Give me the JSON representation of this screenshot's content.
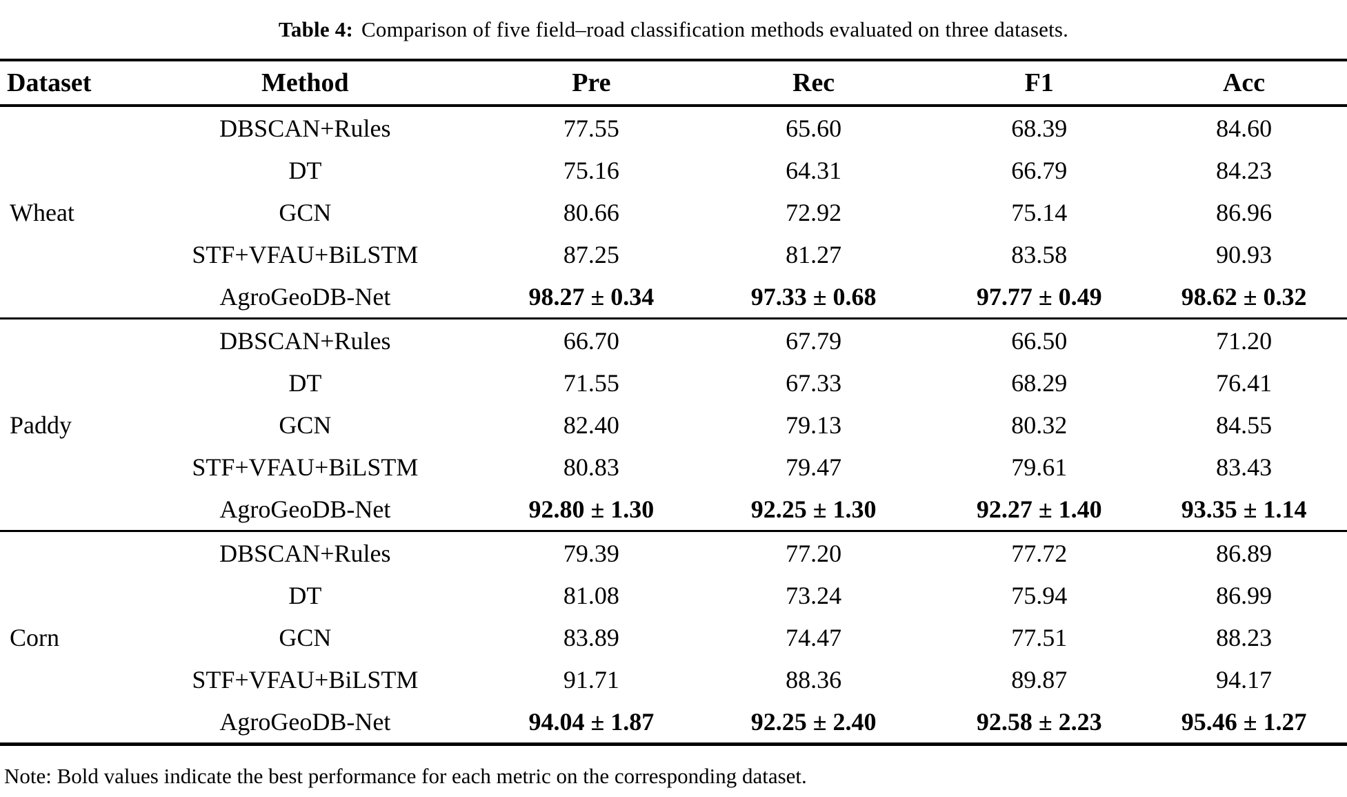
{
  "title": {
    "label": "Table 4:",
    "text": "Comparison of five field–road classification methods evaluated on three datasets."
  },
  "columns": [
    "Dataset",
    "Method",
    "Pre",
    "Rec",
    "F1",
    "Acc"
  ],
  "note": "Note: Bold values indicate the best performance for each metric on the corresponding dataset.",
  "colors": {
    "text": "#000000",
    "background": "#ffffff",
    "rule": "#000000"
  },
  "chart_data": {
    "type": "table",
    "title": "Table 4: Comparison of five field–road classification methods evaluated on three datasets.",
    "columns": [
      "Dataset",
      "Method",
      "Pre",
      "Rec",
      "F1",
      "Acc"
    ],
    "sections": [
      {
        "dataset": "Wheat",
        "rows": [
          {
            "method": "DBSCAN+Rules",
            "pre": "77.55",
            "rec": "65.60",
            "f1": "68.39",
            "acc": "84.60",
            "bold": false
          },
          {
            "method": "DT",
            "pre": "75.16",
            "rec": "64.31",
            "f1": "66.79",
            "acc": "84.23",
            "bold": false
          },
          {
            "method": "GCN",
            "pre": "80.66",
            "rec": "72.92",
            "f1": "75.14",
            "acc": "86.96",
            "bold": false
          },
          {
            "method": "STF+VFAU+BiLSTM",
            "pre": "87.25",
            "rec": "81.27",
            "f1": "83.58",
            "acc": "90.93",
            "bold": false
          },
          {
            "method": "AgroGeoDB-Net",
            "pre": "98.27 ± 0.34",
            "rec": "97.33 ± 0.68",
            "f1": "97.77 ± 0.49",
            "acc": "98.62 ± 0.32",
            "bold": true
          }
        ]
      },
      {
        "dataset": "Paddy",
        "rows": [
          {
            "method": "DBSCAN+Rules",
            "pre": "66.70",
            "rec": "67.79",
            "f1": "66.50",
            "acc": "71.20",
            "bold": false
          },
          {
            "method": "DT",
            "pre": "71.55",
            "rec": "67.33",
            "f1": "68.29",
            "acc": "76.41",
            "bold": false
          },
          {
            "method": "GCN",
            "pre": "82.40",
            "rec": "79.13",
            "f1": "80.32",
            "acc": "84.55",
            "bold": false
          },
          {
            "method": "STF+VFAU+BiLSTM",
            "pre": "80.83",
            "rec": "79.47",
            "f1": "79.61",
            "acc": "83.43",
            "bold": false
          },
          {
            "method": "AgroGeoDB-Net",
            "pre": "92.80 ± 1.30",
            "rec": "92.25 ± 1.30",
            "f1": "92.27 ± 1.40",
            "acc": "93.35 ± 1.14",
            "bold": true
          }
        ]
      },
      {
        "dataset": "Corn",
        "rows": [
          {
            "method": "DBSCAN+Rules",
            "pre": "79.39",
            "rec": "77.20",
            "f1": "77.72",
            "acc": "86.89",
            "bold": false
          },
          {
            "method": "DT",
            "pre": "81.08",
            "rec": "73.24",
            "f1": "75.94",
            "acc": "86.99",
            "bold": false
          },
          {
            "method": "GCN",
            "pre": "83.89",
            "rec": "74.47",
            "f1": "77.51",
            "acc": "88.23",
            "bold": false
          },
          {
            "method": "STF+VFAU+BiLSTM",
            "pre": "91.71",
            "rec": "88.36",
            "f1": "89.87",
            "acc": "94.17",
            "bold": false
          },
          {
            "method": "AgroGeoDB-Net",
            "pre": "94.04 ± 1.87",
            "rec": "92.25 ± 2.40",
            "f1": "92.58 ± 2.23",
            "acc": "95.46 ± 1.27",
            "bold": true
          }
        ]
      }
    ]
  }
}
